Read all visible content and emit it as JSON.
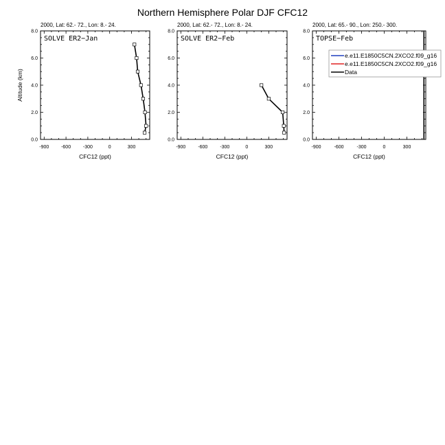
{
  "figure": {
    "title": "Northern Hemisphere Polar DJF CFC12"
  },
  "chart_data": [
    {
      "type": "line",
      "subtitle": "2000, Lat: 62.- 72., Lon: 8.- 24.",
      "inset_label": "SOLVE ER2−Jan",
      "xlabel": "CFC12 (ppt)",
      "ylabel": "Altitude (km)",
      "xlim": [
        -950,
        550
      ],
      "ylim": [
        0,
        8
      ],
      "xticks": [
        "-900",
        "-600",
        "-300",
        "0",
        "300"
      ],
      "yticks": [
        "0.0",
        "2.0",
        "4.0",
        "6.0",
        "8.0"
      ],
      "series": [
        {
          "color": "#000000",
          "x": [
            480,
            500,
            485,
            460,
            430,
            385,
            370,
            340
          ],
          "y": [
            0.5,
            1.0,
            2.0,
            3.0,
            4.0,
            5.0,
            6.0,
            7.0
          ],
          "markers": true
        }
      ]
    },
    {
      "type": "line",
      "subtitle": "2000, Lat: 62.- 72., Lon: 8.- 24.",
      "inset_label": "SOLVE ER2−Feb",
      "xlabel": "CFC12 (ppt)",
      "ylabel": "",
      "xlim": [
        -950,
        550
      ],
      "ylim": [
        0,
        8
      ],
      "xticks": [
        "-900",
        "-600",
        "-300",
        "0",
        "300"
      ],
      "yticks": [
        "0.0",
        "2.0",
        "4.0",
        "6.0",
        "8.0"
      ],
      "series": [
        {
          "color": "#000000",
          "x": [
            510,
            505,
            490,
            300,
            200
          ],
          "y": [
            0.5,
            1.0,
            2.0,
            3.0,
            4.0
          ],
          "markers": true
        }
      ]
    },
    {
      "type": "line",
      "subtitle": "2000, Lat: 65.- 90., Lon: 250.- 300.",
      "inset_label": "TOPSE−Feb",
      "xlabel": "CFC12 (ppt)",
      "ylabel": "",
      "xlim": [
        -950,
        550
      ],
      "ylim": [
        0,
        8
      ],
      "xticks": [
        "-900",
        "-600",
        "-300",
        "0",
        "300"
      ],
      "yticks": [
        "0.0",
        "2.0",
        "4.0",
        "6.0",
        "8.0"
      ],
      "series": [
        {
          "color": "#000000",
          "x": [
            525,
            525
          ],
          "y": [
            0.0,
            8.0
          ],
          "markers": false
        }
      ],
      "legend": {
        "placement": "top-right",
        "entries": [
          {
            "label": "e.e11.E1850C5CN.2XCO2.f09_g16",
            "color": "#1f3fbf"
          },
          {
            "label": "e.e11.E1850C5CN.2XCO2.f09_g16",
            "color": "#e02020"
          },
          {
            "label": "Data",
            "color": "#000000"
          }
        ]
      }
    }
  ]
}
